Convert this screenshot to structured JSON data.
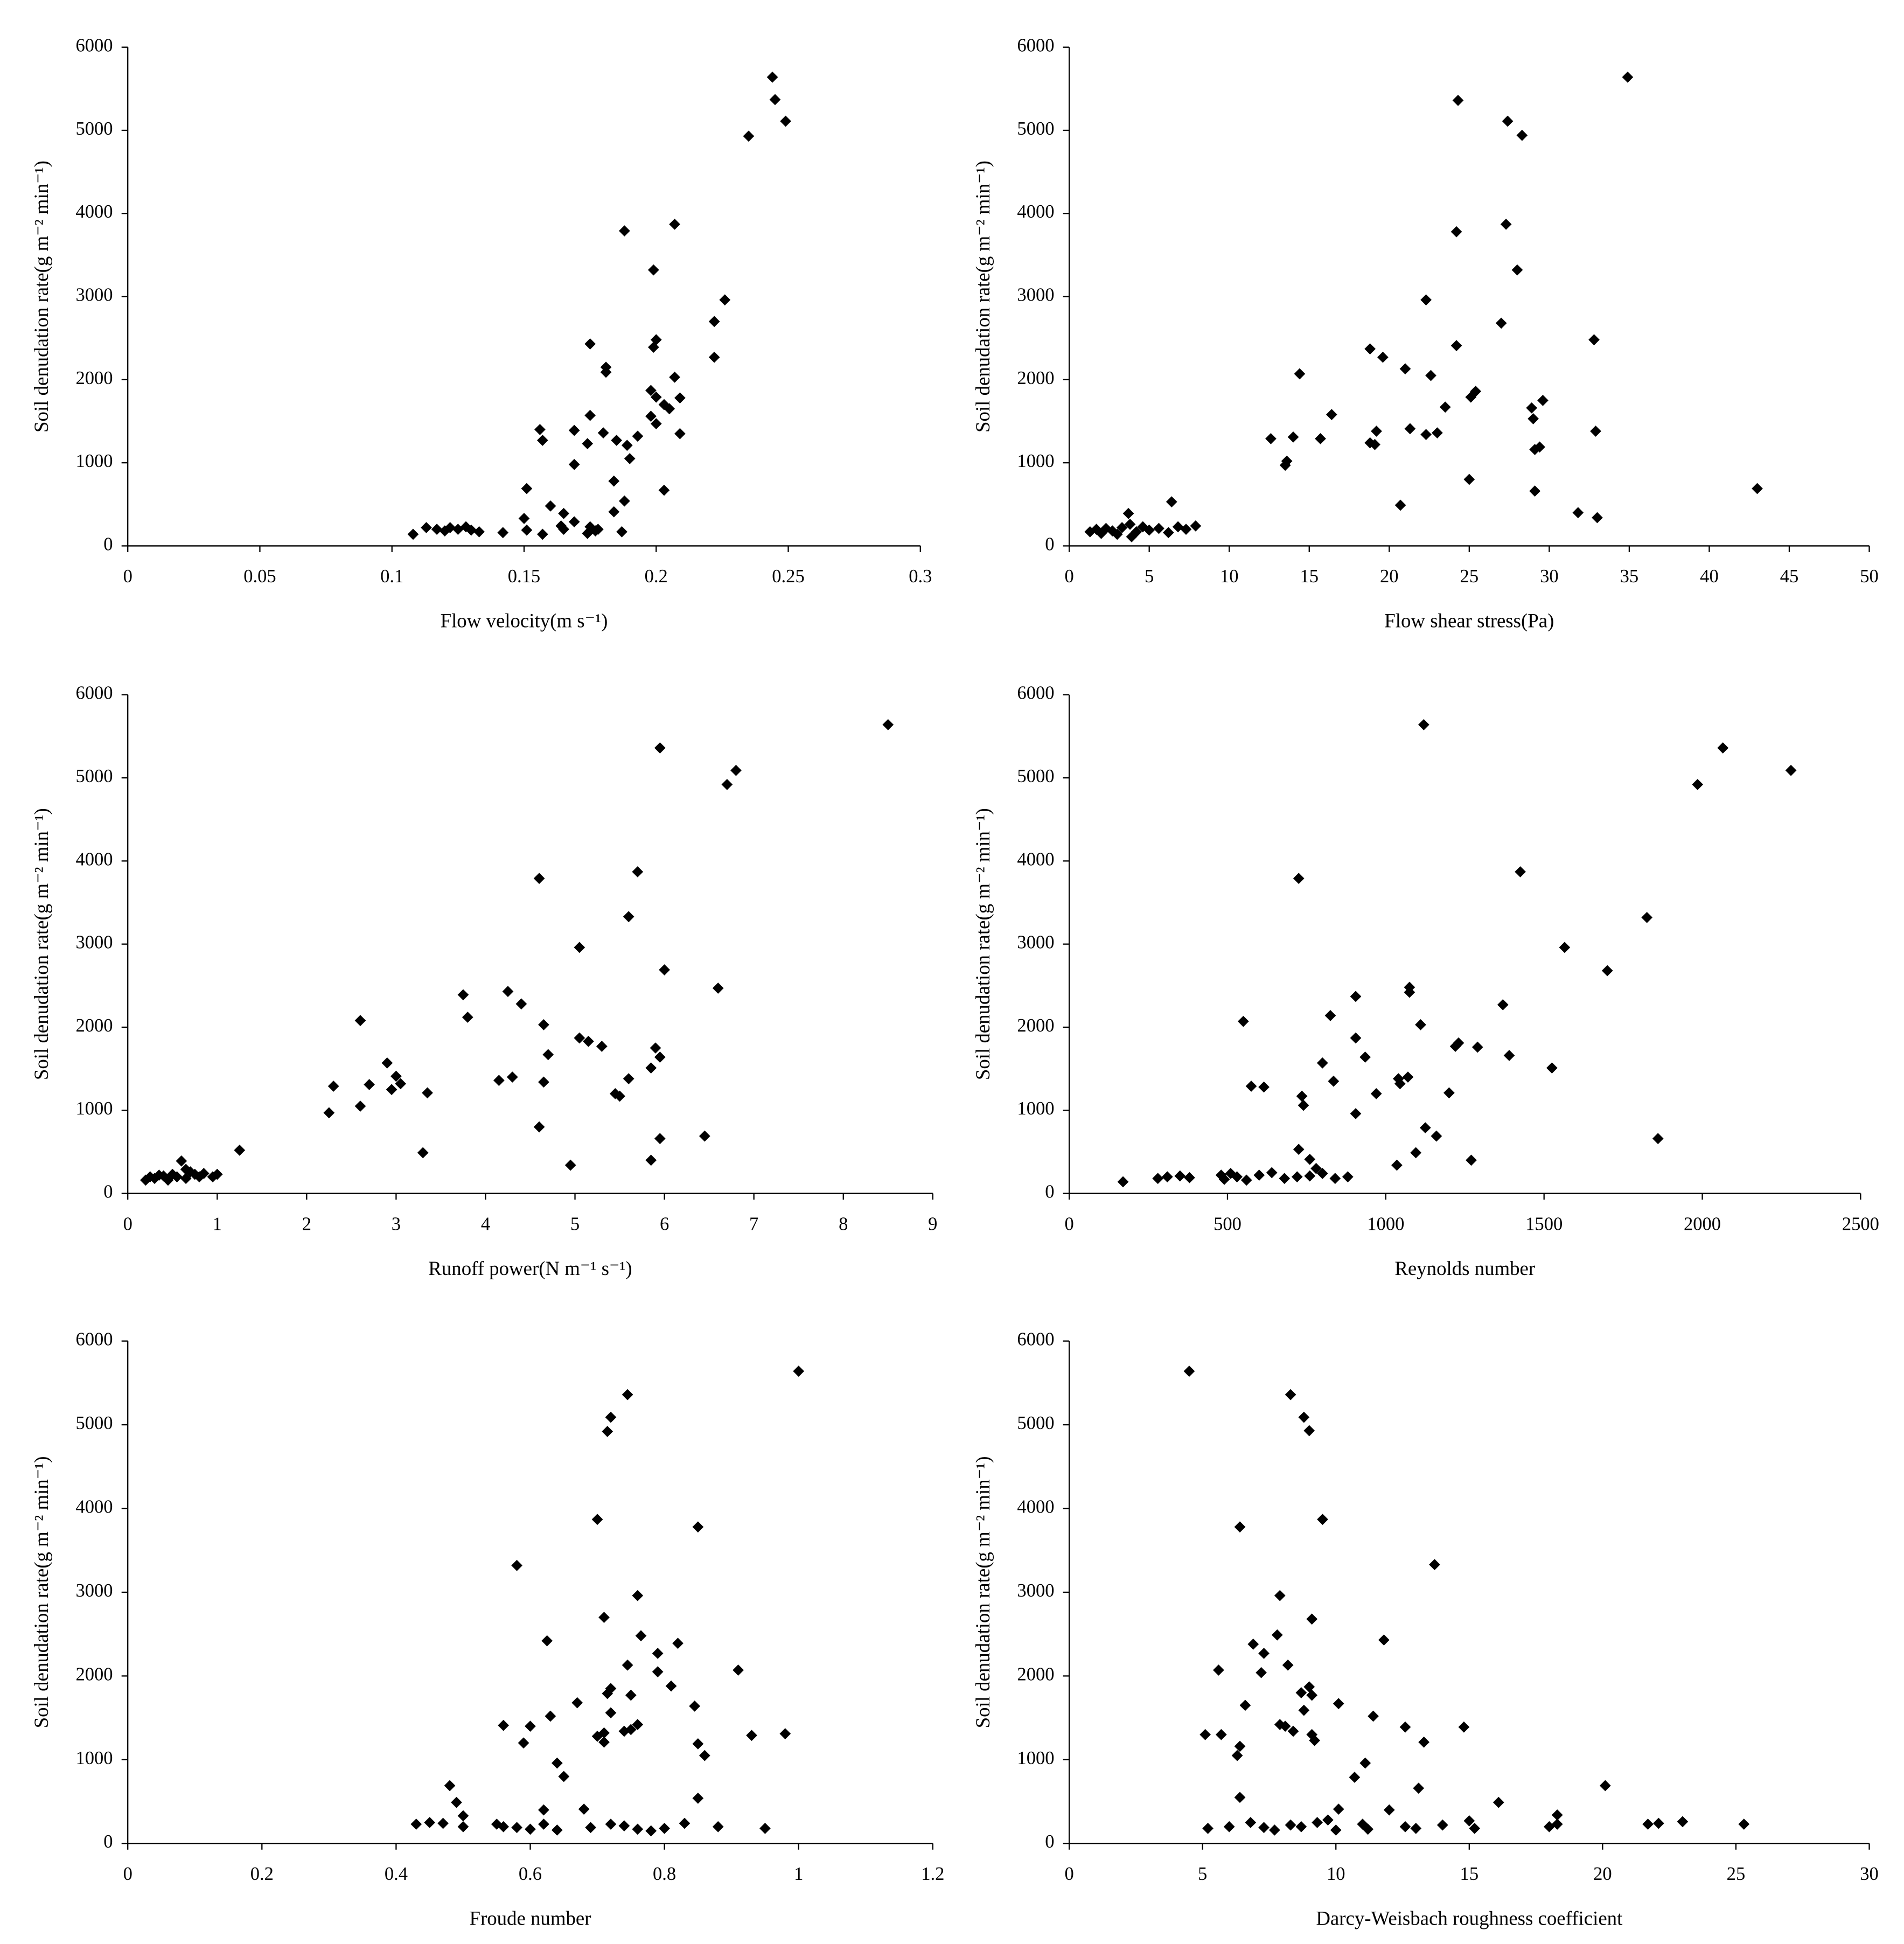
{
  "chart_data": [
    {
      "type": "scatter",
      "xlabel": "Flow velocity(m s⁻¹)",
      "ylabel": "Soil denudation rate(g m⁻² min⁻¹)",
      "color": "#000000",
      "xlim": [
        0,
        0.3
      ],
      "xticks": [
        0,
        0.05,
        0.1,
        0.15,
        0.2,
        0.25,
        0.3
      ],
      "ylim": [
        0,
        6000
      ],
      "yticks": [
        0,
        1000,
        2000,
        3000,
        4000,
        5000,
        6000
      ],
      "x": [
        0.244,
        0.245,
        0.249,
        0.235,
        0.207,
        0.188,
        0.199,
        0.226,
        0.222,
        0.175,
        0.2,
        0.199,
        0.222,
        0.181,
        0.181,
        0.207,
        0.198,
        0.209,
        0.2,
        0.203,
        0.205,
        0.198,
        0.2,
        0.175,
        0.156,
        0.169,
        0.18,
        0.193,
        0.209,
        0.157,
        0.185,
        0.189,
        0.174,
        0.19,
        0.169,
        0.184,
        0.203,
        0.151,
        0.188,
        0.16,
        0.184,
        0.165,
        0.15,
        0.169,
        0.164,
        0.175,
        0.165,
        0.151,
        0.177,
        0.187,
        0.157,
        0.108,
        0.113,
        0.117,
        0.12,
        0.122,
        0.125,
        0.128,
        0.13,
        0.133,
        0.142,
        0.174,
        0.178
      ],
      "values": [
        5640,
        5370,
        5110,
        4930,
        3870,
        3790,
        3320,
        2960,
        2700,
        2430,
        2480,
        2390,
        2270,
        2150,
        2090,
        2030,
        1870,
        1780,
        1790,
        1700,
        1650,
        1560,
        1470,
        1570,
        1400,
        1390,
        1360,
        1320,
        1350,
        1270,
        1270,
        1210,
        1230,
        1050,
        980,
        780,
        670,
        690,
        540,
        480,
        410,
        390,
        330,
        290,
        240,
        230,
        200,
        190,
        180,
        170,
        140,
        140,
        220,
        200,
        180,
        220,
        200,
        230,
        190,
        170,
        160,
        150,
        200
      ]
    },
    {
      "type": "scatter",
      "xlabel": "Flow shear stress(Pa)",
      "ylabel": "Soil denudation rate(g m⁻² min⁻¹)",
      "color": "#000000",
      "xlim": [
        0,
        50
      ],
      "xticks": [
        0,
        5,
        10,
        15,
        20,
        25,
        30,
        35,
        40,
        45,
        50
      ],
      "ylim": [
        0,
        6000
      ],
      "yticks": [
        0,
        1000,
        2000,
        3000,
        4000,
        5000,
        6000
      ],
      "x": [
        34.9,
        24.3,
        27.4,
        28.3,
        27.3,
        24.2,
        28.0,
        22.3,
        27.0,
        32.8,
        24.2,
        18.8,
        19.6,
        21.0,
        14.4,
        22.6,
        25.4,
        25.1,
        29.6,
        28.9,
        23.5,
        16.4,
        29.0,
        12.6,
        14.0,
        15.7,
        18.8,
        19.1,
        19.2,
        21.3,
        22.3,
        23.0,
        29.4,
        29.1,
        32.9,
        13.6,
        13.5,
        25.0,
        43.0,
        29.1,
        20.7,
        31.8,
        33.0,
        6.4,
        3.7,
        1.3,
        1.7,
        2.0,
        2.3,
        2.7,
        3.0,
        3.3,
        3.8,
        4.2,
        4.6,
        5.0,
        5.6,
        6.2,
        6.8,
        7.3,
        7.9,
        3.9
      ],
      "values": [
        5640,
        5360,
        5110,
        4940,
        3870,
        3780,
        3320,
        2960,
        2680,
        2480,
        2410,
        2370,
        2270,
        2130,
        2070,
        2050,
        1860,
        1790,
        1750,
        1660,
        1670,
        1580,
        1530,
        1290,
        1310,
        1290,
        1240,
        1220,
        1380,
        1410,
        1340,
        1360,
        1190,
        1160,
        1380,
        1020,
        970,
        800,
        690,
        660,
        490,
        400,
        340,
        530,
        390,
        170,
        200,
        150,
        210,
        180,
        140,
        220,
        260,
        170,
        230,
        190,
        210,
        160,
        230,
        200,
        240,
        110
      ]
    },
    {
      "type": "scatter",
      "xlabel": "Runoff power(N m⁻¹ s⁻¹)",
      "ylabel": "Soil denudation rate(g m⁻² min⁻¹)",
      "color": "#000000",
      "xlim": [
        0,
        9
      ],
      "xticks": [
        0,
        1,
        2,
        3,
        4,
        5,
        6,
        7,
        8,
        9
      ],
      "ylim": [
        0,
        6000
      ],
      "yticks": [
        0,
        1000,
        2000,
        3000,
        4000,
        5000,
        6000
      ],
      "x": [
        8.5,
        5.95,
        6.8,
        6.7,
        5.7,
        4.6,
        5.6,
        5.05,
        6.0,
        6.6,
        4.25,
        3.75,
        4.4,
        3.8,
        2.6,
        4.65,
        5.05,
        5.15,
        5.3,
        5.9,
        5.95,
        4.7,
        2.9,
        5.85,
        3.0,
        5.6,
        4.15,
        4.3,
        4.65,
        2.3,
        2.7,
        2.95,
        3.05,
        3.35,
        5.45,
        5.5,
        2.25,
        2.6,
        4.6,
        6.45,
        5.95,
        3.3,
        1.25,
        5.85,
        0.6,
        4.95,
        0.2,
        0.25,
        0.3,
        0.35,
        0.4,
        0.45,
        0.5,
        0.55,
        0.65,
        0.7,
        0.75,
        0.8,
        0.85,
        0.95,
        1.0,
        0.65
      ],
      "values": [
        5640,
        5360,
        5090,
        4920,
        3870,
        3790,
        3330,
        2960,
        2690,
        2470,
        2430,
        2390,
        2280,
        2120,
        2080,
        2030,
        1870,
        1830,
        1770,
        1750,
        1640,
        1670,
        1570,
        1510,
        1410,
        1380,
        1360,
        1400,
        1340,
        1290,
        1310,
        1250,
        1320,
        1210,
        1200,
        1170,
        970,
        1050,
        800,
        690,
        660,
        490,
        520,
        400,
        390,
        340,
        160,
        200,
        180,
        220,
        210,
        160,
        230,
        200,
        180,
        260,
        230,
        200,
        240,
        200,
        230,
        290
      ]
    },
    {
      "type": "scatter",
      "xlabel": "Reynolds number",
      "ylabel": "Soil denudation rate(g m⁻² min⁻¹)",
      "color": "#000000",
      "xlim": [
        0,
        2500
      ],
      "xticks": [
        0,
        500,
        1000,
        1500,
        2000,
        2500
      ],
      "ylim": [
        0,
        6000
      ],
      "yticks": [
        0,
        1000,
        2000,
        3000,
        4000,
        5000,
        6000
      ],
      "x": [
        1120,
        2065,
        2280,
        1985,
        1425,
        725,
        1825,
        1565,
        1700,
        1075,
        1075,
        905,
        1370,
        825,
        550,
        1110,
        905,
        935,
        1230,
        1220,
        1290,
        800,
        1390,
        1525,
        1040,
        1070,
        1045,
        970,
        575,
        615,
        1200,
        735,
        835,
        740,
        905,
        1125,
        1160,
        1860,
        725,
        1095,
        760,
        1270,
        1035,
        170,
        280,
        310,
        350,
        380,
        480,
        490,
        510,
        530,
        560,
        600,
        640,
        680,
        720,
        780,
        800,
        840,
        880,
        760
      ],
      "values": [
        5640,
        5360,
        5090,
        4920,
        3870,
        3790,
        3320,
        2960,
        2680,
        2480,
        2420,
        2370,
        2270,
        2140,
        2070,
        2030,
        1870,
        1640,
        1810,
        1770,
        1760,
        1570,
        1660,
        1510,
        1380,
        1400,
        1320,
        1200,
        1290,
        1280,
        1210,
        1170,
        1350,
        1060,
        960,
        790,
        690,
        660,
        530,
        490,
        410,
        400,
        340,
        140,
        180,
        200,
        210,
        190,
        220,
        170,
        240,
        200,
        160,
        220,
        250,
        180,
        200,
        300,
        240,
        180,
        200,
        210
      ]
    },
    {
      "type": "scatter",
      "xlabel": "Froude number",
      "ylabel": "Soil denudation rate(g m⁻² min⁻¹)",
      "color": "#000000",
      "xlim": [
        0,
        1.2
      ],
      "xticks": [
        0,
        0.2,
        0.4,
        0.6,
        0.8,
        1,
        1.2
      ],
      "ylim": [
        0,
        6000
      ],
      "yticks": [
        0,
        1000,
        2000,
        3000,
        4000,
        5000,
        6000
      ],
      "x": [
        1.0,
        0.745,
        0.72,
        0.715,
        0.7,
        0.85,
        0.58,
        0.76,
        0.71,
        0.765,
        0.625,
        0.82,
        0.79,
        0.745,
        0.91,
        0.79,
        0.81,
        0.72,
        0.715,
        0.75,
        0.67,
        0.845,
        0.72,
        0.63,
        0.56,
        0.6,
        0.76,
        0.75,
        0.74,
        0.71,
        0.7,
        0.71,
        0.93,
        0.98,
        0.59,
        0.85,
        0.86,
        0.64,
        0.65,
        0.48,
        0.49,
        0.85,
        0.5,
        0.62,
        0.68,
        0.43,
        0.45,
        0.47,
        0.5,
        0.55,
        0.56,
        0.58,
        0.6,
        0.62,
        0.64,
        0.69,
        0.72,
        0.74,
        0.76,
        0.78,
        0.8,
        0.83,
        0.88,
        0.95
      ],
      "values": [
        5640,
        5360,
        5090,
        4920,
        3870,
        3780,
        3320,
        2960,
        2700,
        2480,
        2420,
        2390,
        2270,
        2130,
        2070,
        2050,
        1880,
        1850,
        1790,
        1770,
        1680,
        1640,
        1560,
        1520,
        1410,
        1400,
        1420,
        1360,
        1340,
        1320,
        1280,
        1210,
        1290,
        1310,
        1200,
        1190,
        1050,
        960,
        800,
        690,
        490,
        540,
        330,
        400,
        410,
        230,
        250,
        240,
        200,
        230,
        200,
        190,
        170,
        230,
        160,
        190,
        230,
        210,
        170,
        150,
        180,
        240,
        200,
        180
      ]
    },
    {
      "type": "scatter",
      "xlabel": "Darcy-Weisbach roughness coefficient",
      "ylabel": "Soil denudation rate(g m⁻² min⁻¹)",
      "color": "#000000",
      "xlim": [
        0,
        30
      ],
      "xticks": [
        0,
        5,
        10,
        15,
        20,
        25,
        30
      ],
      "ylim": [
        0,
        6000
      ],
      "yticks": [
        0,
        1000,
        2000,
        3000,
        4000,
        5000,
        6000
      ],
      "x": [
        4.5,
        8.3,
        8.8,
        9.0,
        9.5,
        6.4,
        13.7,
        7.9,
        9.1,
        7.8,
        11.8,
        6.9,
        7.3,
        8.2,
        5.6,
        7.2,
        8.7,
        9.1,
        9.0,
        6.6,
        10.1,
        8.8,
        11.4,
        7.9,
        8.1,
        8.4,
        9.1,
        9.2,
        12.6,
        14.8,
        13.3,
        5.1,
        5.7,
        6.4,
        6.3,
        11.1,
        10.7,
        20.1,
        13.1,
        6.4,
        16.1,
        10.1,
        12.0,
        18.3,
        5.2,
        6.0,
        6.8,
        7.3,
        7.7,
        8.3,
        8.7,
        9.3,
        9.7,
        10.0,
        11.0,
        11.2,
        12.6,
        13.0,
        14.0,
        15.0,
        15.2,
        18.0,
        18.3,
        21.7,
        22.1,
        23.0,
        25.3
      ],
      "values": [
        5640,
        5360,
        5090,
        4930,
        3870,
        3780,
        3330,
        2960,
        2680,
        2490,
        2430,
        2380,
        2270,
        2130,
        2070,
        2040,
        1800,
        1770,
        1870,
        1650,
        1670,
        1590,
        1520,
        1420,
        1400,
        1340,
        1300,
        1230,
        1390,
        1390,
        1210,
        1300,
        1300,
        1160,
        1050,
        960,
        790,
        690,
        660,
        550,
        490,
        410,
        400,
        340,
        180,
        200,
        250,
        190,
        160,
        220,
        200,
        250,
        280,
        160,
        230,
        170,
        200,
        180,
        220,
        270,
        180,
        200,
        230,
        230,
        240,
        260,
        230
      ]
    }
  ]
}
